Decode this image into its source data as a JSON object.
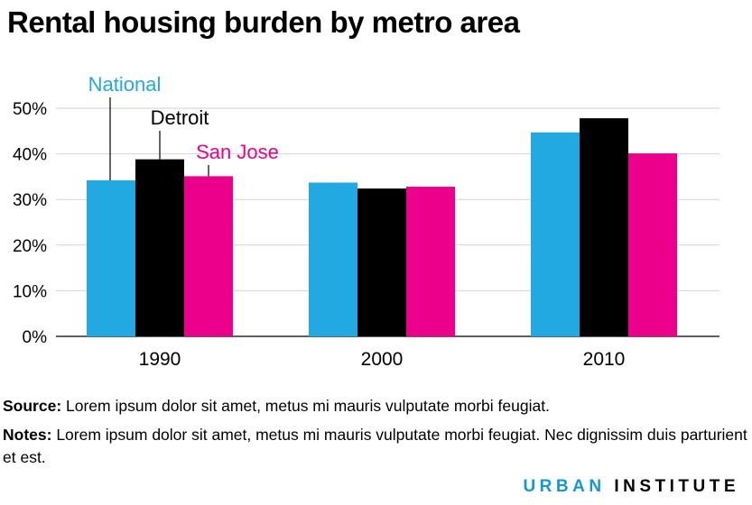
{
  "title": "Rental housing burden by metro area",
  "chart_data": {
    "type": "bar",
    "categories": [
      "1990",
      "2000",
      "2010"
    ],
    "series": [
      {
        "name": "National",
        "values": [
          34.2,
          33.7,
          44.7
        ],
        "color": "#22a9e1"
      },
      {
        "name": "Detroit",
        "values": [
          38.8,
          32.4,
          47.8
        ],
        "color": "#000000"
      },
      {
        "name": "San Jose",
        "values": [
          35.1,
          32.8,
          40.1
        ],
        "color": "#ec008b"
      }
    ],
    "ylim": [
      0,
      50
    ],
    "yticks": [
      0,
      10,
      20,
      30,
      40,
      50
    ],
    "ytick_labels": [
      "0%",
      "10%",
      "20%",
      "30%",
      "40%",
      "50%"
    ],
    "grid": true,
    "legend": "direct labels above 1990 bars"
  },
  "source": {
    "label": "Source:",
    "text": " Lorem ipsum dolor sit amet, metus mi mauris vulputate morbi feugiat."
  },
  "notes": {
    "label": "Notes:",
    "text": " Lorem ipsum dolor sit amet, metus mi mauris vulputate morbi feugiat. Nec dignissim duis parturient et est."
  },
  "logo": {
    "part1": "URBAN",
    "part2": "INSTITUTE"
  }
}
